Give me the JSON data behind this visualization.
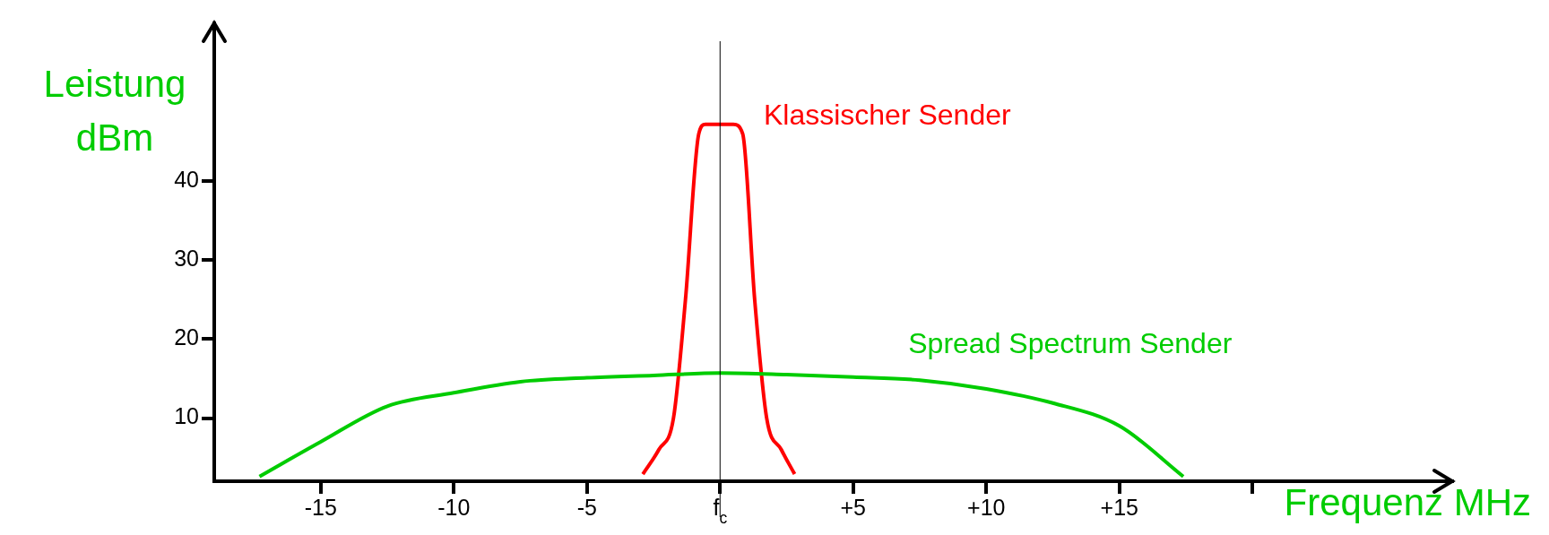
{
  "chart_data": {
    "type": "line",
    "xlabel": "Frequenz MHz",
    "ylabel": "Leistung dBm",
    "xlim": [
      -19,
      27.5
    ],
    "ylim": [
      2,
      60
    ],
    "xticks": [
      -15,
      -10,
      -5,
      {
        "value": 0,
        "label": "f$_{c}$"
      },
      {
        "value": 5,
        "label": "+5"
      },
      {
        "value": 10,
        "label": "+10"
      },
      {
        "value": 15,
        "label": "+15"
      },
      {
        "value": 20,
        "label": null
      }
    ],
    "yticks": [
      10,
      20,
      30,
      40
    ],
    "grid": false,
    "marker": "none",
    "ref_lines": [
      {
        "axis": "x",
        "value": 0,
        "color": "#000000"
      }
    ],
    "series": [
      {
        "name": "Spread Spectrum Sender",
        "color": "#00cc00",
        "x": [
          -17.3,
          -15,
          -12.5,
          -10,
          -7.5,
          -5,
          -2.5,
          0,
          2.5,
          5,
          7.5,
          10,
          12.5,
          15,
          17.4
        ],
        "values": [
          2.6,
          7,
          11.5,
          13.2,
          14.6,
          15.1,
          15.4,
          15.7,
          15.5,
          15.2,
          14.8,
          13.7,
          11.9,
          9,
          2.6
        ]
      },
      {
        "name": "Klassischer Sender",
        "color": "#ff0000",
        "x": [
          -2.9,
          -2.3,
          -1.75,
          -1.3,
          -0.8,
          -0.55,
          0.5,
          0.85,
          1.3,
          1.75,
          2.3,
          2.8
        ],
        "values": [
          2.9,
          6,
          10,
          25,
          46,
          47.2,
          47.2,
          46,
          25,
          10,
          6,
          2.9
        ]
      }
    ]
  }
}
